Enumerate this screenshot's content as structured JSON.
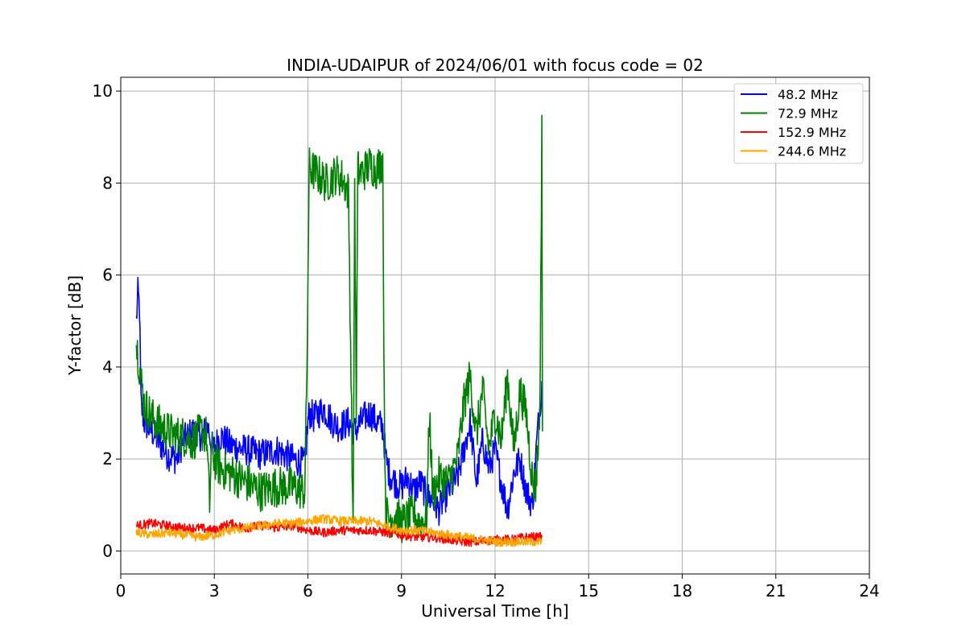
{
  "chart_data": {
    "type": "line",
    "title": "INDIA-UDAIPUR of 2024/06/01 with focus code = 02",
    "xlabel": "Universal Time [h]",
    "ylabel": "Y-factor [dB]",
    "xlim": [
      0,
      24
    ],
    "ylim": [
      -0.5,
      10.3
    ],
    "xticks": [
      0,
      3,
      6,
      9,
      12,
      15,
      18,
      21,
      24
    ],
    "yticks": [
      0,
      2,
      4,
      6,
      8,
      10
    ],
    "grid": true,
    "legend_position": "top-right",
    "series": [
      {
        "name": " 48.2 MHz",
        "color": "#0000ff",
        "noise": 0.35,
        "x": [
          0.5,
          0.55,
          0.6,
          0.65,
          0.75,
          1.0,
          1.3,
          1.5,
          1.8,
          2.0,
          2.3,
          2.6,
          2.8,
          2.95,
          3.2,
          3.5,
          4.0,
          4.5,
          5.0,
          5.5,
          5.9,
          6.0,
          6.05,
          6.2,
          6.5,
          6.8,
          7.0,
          7.3,
          7.5,
          7.6,
          7.8,
          8.0,
          8.2,
          8.4,
          8.5,
          8.6,
          8.8,
          9.0,
          9.2,
          9.4,
          9.6,
          9.8,
          10.0,
          10.2,
          10.5,
          10.8,
          11.0,
          11.2,
          11.4,
          11.6,
          11.8,
          12.0,
          12.2,
          12.4,
          12.6,
          12.8,
          13.0,
          13.2,
          13.35,
          13.45,
          13.5
        ],
        "y": [
          5.0,
          5.6,
          5.3,
          3.2,
          2.8,
          2.6,
          2.3,
          2.1,
          2.0,
          2.4,
          2.6,
          2.5,
          2.7,
          2.2,
          2.5,
          2.3,
          2.2,
          2.1,
          2.2,
          2.0,
          1.9,
          2.8,
          3.0,
          2.9,
          3.1,
          2.8,
          2.7,
          2.8,
          2.6,
          2.7,
          2.9,
          3.0,
          2.8,
          2.7,
          2.0,
          1.7,
          1.5,
          1.4,
          1.6,
          1.3,
          1.5,
          1.2,
          1.1,
          0.9,
          1.3,
          1.6,
          2.2,
          2.8,
          1.5,
          2.4,
          1.8,
          2.2,
          1.5,
          0.9,
          1.7,
          2.0,
          1.3,
          1.0,
          2.5,
          3.2,
          3.7
        ]
      },
      {
        "name": " 72.9 MHz",
        "color": "#008000",
        "noise": 0.45,
        "x": [
          0.5,
          0.55,
          0.6,
          0.75,
          1.0,
          1.3,
          1.5,
          1.8,
          2.0,
          2.3,
          2.6,
          2.75,
          2.85,
          2.9,
          3.0,
          3.2,
          3.5,
          4.0,
          4.5,
          5.0,
          5.5,
          5.9,
          5.97,
          6.02,
          6.05,
          6.1,
          6.3,
          6.6,
          6.9,
          7.1,
          7.3,
          7.4,
          7.45,
          7.5,
          7.55,
          7.6,
          7.7,
          8.0,
          8.2,
          8.4,
          8.45,
          8.5,
          8.6,
          8.8,
          9.0,
          9.2,
          9.4,
          9.6,
          9.8,
          9.9,
          10.0,
          10.2,
          10.5,
          10.8,
          11.0,
          11.2,
          11.4,
          11.6,
          11.8,
          12.0,
          12.2,
          12.4,
          12.6,
          12.8,
          13.0,
          13.2,
          13.3,
          13.4,
          13.45,
          13.5,
          13.52
        ],
        "y": [
          4.5,
          4.3,
          4.0,
          3.2,
          2.9,
          2.7,
          2.6,
          2.5,
          2.5,
          2.4,
          2.6,
          2.5,
          1.0,
          2.2,
          2.0,
          1.8,
          1.7,
          1.5,
          1.3,
          1.4,
          1.4,
          1.3,
          4.0,
          7.0,
          8.5,
          8.3,
          8.2,
          8.0,
          8.2,
          8.1,
          7.8,
          3.0,
          0.2,
          8.0,
          3.0,
          8.3,
          8.2,
          8.4,
          8.3,
          8.5,
          3.0,
          0.8,
          0.7,
          0.8,
          0.6,
          0.7,
          0.8,
          0.6,
          0.7,
          3.0,
          1.2,
          1.6,
          1.5,
          2.0,
          3.2,
          3.8,
          2.5,
          3.5,
          2.2,
          3.0,
          2.4,
          3.8,
          2.2,
          3.5,
          3.0,
          1.5,
          1.4,
          2.5,
          3.8,
          9.4,
          2.6
        ]
      },
      {
        "name": " 152.9 MHz",
        "color": "#ff0000",
        "noise": 0.1,
        "x": [
          0.5,
          1.0,
          1.5,
          2.0,
          2.5,
          3.0,
          3.5,
          4.0,
          4.5,
          5.0,
          5.5,
          6.0,
          6.5,
          7.0,
          7.5,
          8.0,
          8.5,
          9.0,
          9.5,
          10.0,
          10.5,
          11.0,
          11.5,
          12.0,
          12.5,
          13.0,
          13.5
        ],
        "y": [
          0.55,
          0.6,
          0.55,
          0.5,
          0.5,
          0.45,
          0.6,
          0.5,
          0.55,
          0.5,
          0.55,
          0.45,
          0.4,
          0.45,
          0.45,
          0.45,
          0.4,
          0.35,
          0.3,
          0.3,
          0.25,
          0.2,
          0.2,
          0.25,
          0.25,
          0.3,
          0.3
        ]
      },
      {
        "name": " 244.6 MHz",
        "color": "#ffa500",
        "noise": 0.1,
        "x": [
          0.5,
          1.0,
          1.5,
          2.0,
          2.5,
          3.0,
          3.5,
          4.0,
          4.5,
          5.0,
          5.5,
          6.0,
          6.5,
          7.0,
          7.5,
          8.0,
          8.5,
          9.0,
          9.5,
          10.0,
          10.5,
          11.0,
          11.5,
          12.0,
          12.5,
          13.0,
          13.5
        ],
        "y": [
          0.4,
          0.35,
          0.4,
          0.35,
          0.3,
          0.35,
          0.45,
          0.5,
          0.55,
          0.6,
          0.6,
          0.65,
          0.7,
          0.65,
          0.65,
          0.65,
          0.55,
          0.45,
          0.45,
          0.4,
          0.35,
          0.3,
          0.25,
          0.2,
          0.2,
          0.2,
          0.2
        ]
      }
    ]
  }
}
